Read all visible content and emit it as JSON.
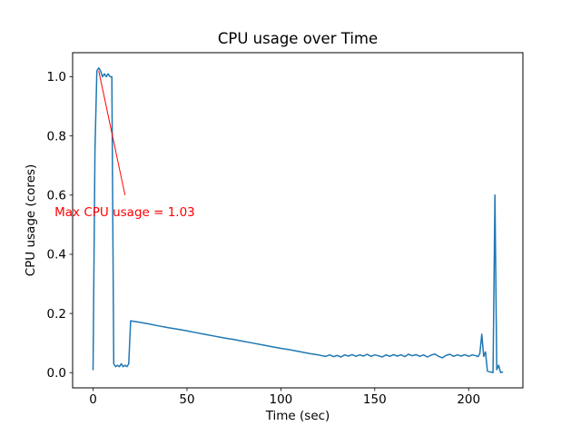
{
  "chart_data": {
    "type": "line",
    "title": "CPU usage over Time",
    "xlabel": "Time (sec)",
    "ylabel": "CPU usage (cores)",
    "line_color": "#1f77b4",
    "background": "#ffffff",
    "grid": false,
    "legend": null,
    "xlim": [
      -10.9,
      228.9
    ],
    "ylim": [
      -0.0515,
      1.0815
    ],
    "xticks": [
      0,
      50,
      100,
      150,
      200
    ],
    "yticks": [
      0.0,
      0.2,
      0.4,
      0.6,
      0.8,
      1.0
    ],
    "max_value": 1.03,
    "points": [
      [
        0,
        0.01
      ],
      [
        1,
        0.75
      ],
      [
        2,
        1.02
      ],
      [
        3,
        1.03
      ],
      [
        4,
        1.02
      ],
      [
        5,
        1.0
      ],
      [
        6,
        1.01
      ],
      [
        7,
        1.0
      ],
      [
        8,
        1.01
      ],
      [
        9,
        1.0
      ],
      [
        10,
        1.0
      ],
      [
        11,
        0.03
      ],
      [
        12,
        0.02
      ],
      [
        13,
        0.025
      ],
      [
        14,
        0.02
      ],
      [
        15,
        0.03
      ],
      [
        16,
        0.02
      ],
      [
        17,
        0.025
      ],
      [
        18,
        0.02
      ],
      [
        19,
        0.03
      ],
      [
        20,
        0.175
      ],
      [
        25,
        0.17
      ],
      [
        30,
        0.164
      ],
      [
        35,
        0.158
      ],
      [
        40,
        0.152
      ],
      [
        45,
        0.147
      ],
      [
        50,
        0.141
      ],
      [
        55,
        0.135
      ],
      [
        60,
        0.129
      ],
      [
        65,
        0.123
      ],
      [
        70,
        0.117
      ],
      [
        75,
        0.112
      ],
      [
        80,
        0.106
      ],
      [
        85,
        0.1
      ],
      [
        90,
        0.094
      ],
      [
        95,
        0.088
      ],
      [
        100,
        0.082
      ],
      [
        105,
        0.077
      ],
      [
        110,
        0.071
      ],
      [
        115,
        0.065
      ],
      [
        120,
        0.06
      ],
      [
        122,
        0.057
      ],
      [
        124,
        0.055
      ],
      [
        126,
        0.06
      ],
      [
        128,
        0.054
      ],
      [
        130,
        0.058
      ],
      [
        132,
        0.053
      ],
      [
        134,
        0.06
      ],
      [
        136,
        0.056
      ],
      [
        138,
        0.061
      ],
      [
        140,
        0.055
      ],
      [
        142,
        0.06
      ],
      [
        144,
        0.056
      ],
      [
        146,
        0.062
      ],
      [
        148,
        0.055
      ],
      [
        150,
        0.06
      ],
      [
        152,
        0.057
      ],
      [
        154,
        0.053
      ],
      [
        156,
        0.06
      ],
      [
        158,
        0.055
      ],
      [
        160,
        0.061
      ],
      [
        162,
        0.056
      ],
      [
        164,
        0.06
      ],
      [
        166,
        0.054
      ],
      [
        168,
        0.062
      ],
      [
        170,
        0.057
      ],
      [
        172,
        0.061
      ],
      [
        174,
        0.055
      ],
      [
        176,
        0.06
      ],
      [
        178,
        0.053
      ],
      [
        180,
        0.059
      ],
      [
        182,
        0.063
      ],
      [
        184,
        0.055
      ],
      [
        186,
        0.05
      ],
      [
        188,
        0.058
      ],
      [
        190,
        0.062
      ],
      [
        192,
        0.055
      ],
      [
        194,
        0.06
      ],
      [
        196,
        0.056
      ],
      [
        198,
        0.061
      ],
      [
        200,
        0.055
      ],
      [
        202,
        0.06
      ],
      [
        204,
        0.057
      ],
      [
        205,
        0.054
      ],
      [
        206,
        0.065
      ],
      [
        207,
        0.13
      ],
      [
        208,
        0.055
      ],
      [
        209,
        0.07
      ],
      [
        210,
        0.005
      ],
      [
        211,
        0.003
      ],
      [
        212,
        0.002
      ],
      [
        213,
        0.0
      ],
      [
        214,
        0.6
      ],
      [
        215,
        0.01
      ],
      [
        216,
        0.025
      ],
      [
        217,
        0.0
      ],
      [
        218,
        0.002
      ]
    ],
    "annotation": {
      "text": "Max CPU usage = 1.03",
      "color": "red",
      "point": [
        3,
        1.02
      ],
      "tail": [
        17,
        0.6
      ],
      "text_pos": [
        -20.5,
        0.529
      ]
    }
  }
}
